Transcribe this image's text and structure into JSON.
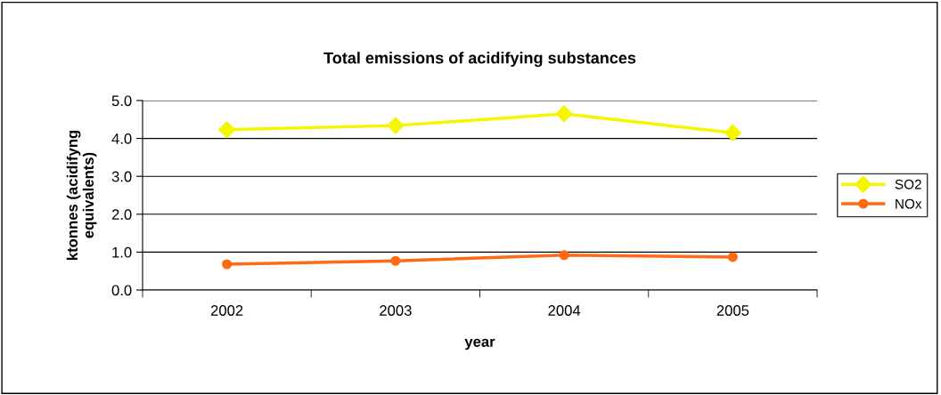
{
  "chart_data": {
    "type": "line",
    "title": "Total emissions of acidifying substances",
    "xlabel": "year",
    "ylabel": "ktonnes (acidifyng\nequivalents)",
    "categories": [
      "2002",
      "2003",
      "2004",
      "2005"
    ],
    "series": [
      {
        "name": "SO2",
        "color": "#f5f500",
        "marker": "diamond",
        "values": [
          4.23,
          4.34,
          4.65,
          4.15
        ]
      },
      {
        "name": "NOx",
        "color": "#ff6a13",
        "marker": "circle",
        "values": [
          0.68,
          0.77,
          0.92,
          0.87
        ]
      }
    ],
    "ylim": [
      0,
      5
    ],
    "yticks": [
      {
        "value": 0,
        "label": "0.0"
      },
      {
        "value": 1,
        "label": "1.0"
      },
      {
        "value": 2,
        "label": "2.0"
      },
      {
        "value": 3,
        "label": "3.0"
      },
      {
        "value": 4,
        "label": "4.0"
      },
      {
        "value": 5,
        "label": "5.0"
      }
    ],
    "grid": "y",
    "legend": "right"
  }
}
